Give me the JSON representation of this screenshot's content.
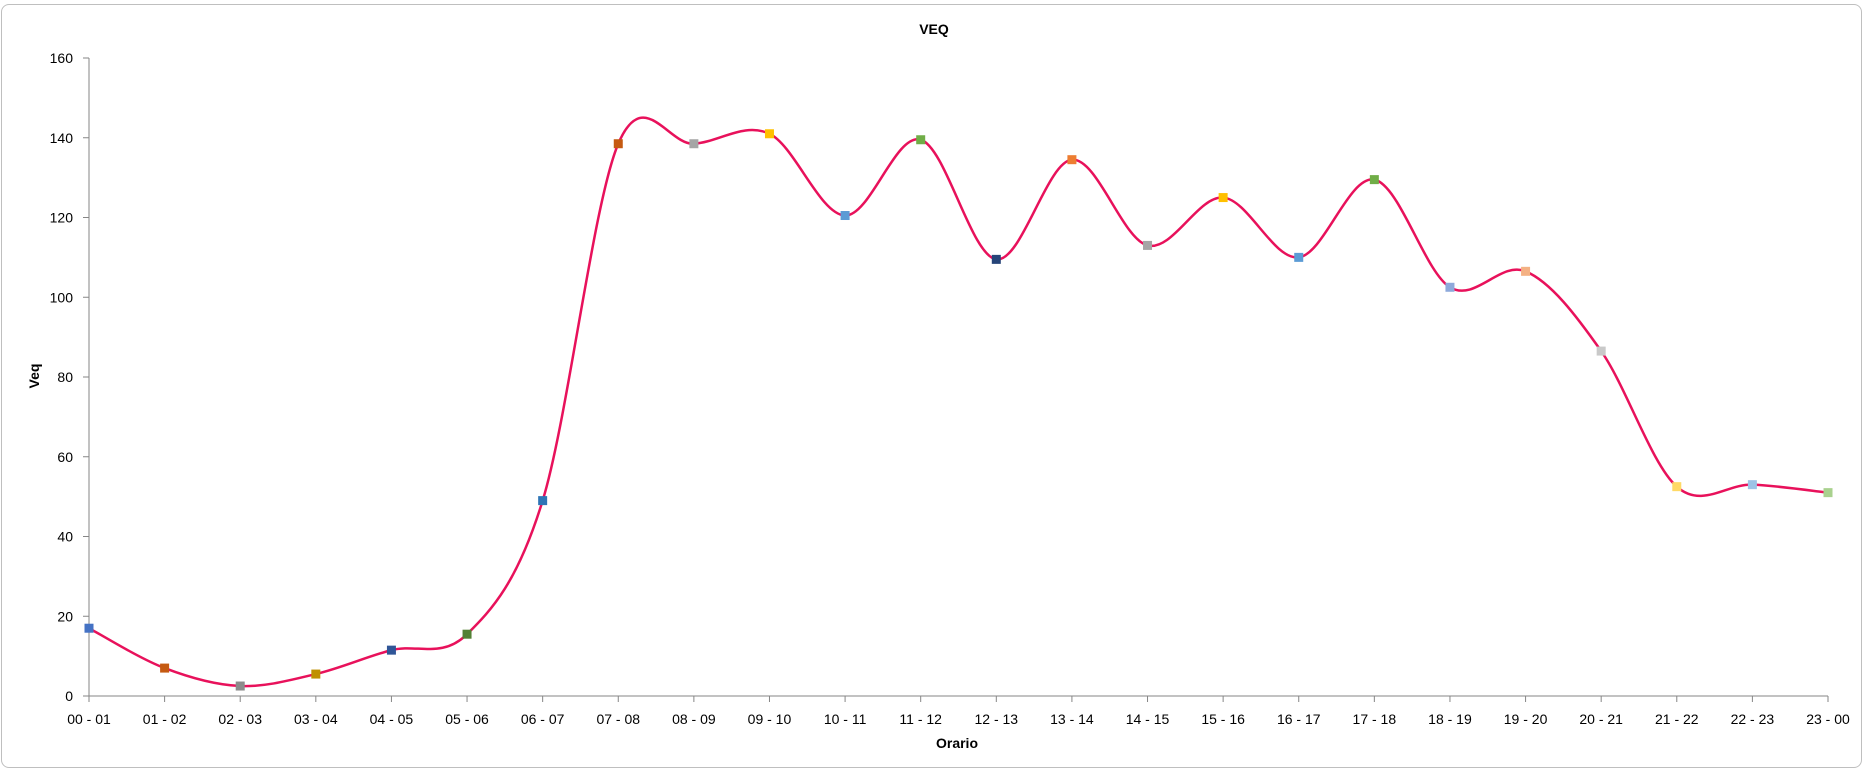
{
  "chart_data": {
    "type": "line",
    "title": "VEQ",
    "xlabel": "Orario",
    "ylabel": "Veq",
    "ylim": [
      0,
      160
    ],
    "yticks": [
      0,
      20,
      40,
      60,
      80,
      100,
      120,
      140,
      160
    ],
    "grid": false,
    "smooth": true,
    "line_color": "#e8115b",
    "categories": [
      "00 - 01",
      "01 - 02",
      "02 - 03",
      "03 - 04",
      "04 - 05",
      "05 - 06",
      "06 - 07",
      "07 - 08",
      "08 - 09",
      "09 - 10",
      "10 - 11",
      "11 - 12",
      "12 - 13",
      "13 - 14",
      "14 - 15",
      "15 - 16",
      "16 - 17",
      "17 - 18",
      "18 - 19",
      "19 - 20",
      "20 - 21",
      "21 - 22",
      "22 - 23",
      "23 - 00"
    ],
    "series": [
      {
        "values": [
          17,
          7,
          2.5,
          5.5,
          11.5,
          15.5,
          49,
          138.5,
          138.5,
          141,
          120.5,
          139.5,
          109.5,
          134.5,
          113,
          125,
          110,
          129.5,
          102.5,
          106.5,
          86.5,
          52.5,
          53,
          51
        ]
      }
    ],
    "marker_colors": [
      "#4472c4",
      "#c55a11",
      "#8c8c8c",
      "#bf9000",
      "#2f5597",
      "#538135",
      "#2e75b6",
      "#c55a11",
      "#a5a5a5",
      "#ffc000",
      "#5b9bd5",
      "#70ad47",
      "#264478",
      "#ed7d31",
      "#a5a5a5",
      "#ffc000",
      "#5b9bd5",
      "#70ad47",
      "#8ea9db",
      "#f4b183",
      "#c9c9c9",
      "#ffd966",
      "#9dc3e6",
      "#a9d18e"
    ]
  }
}
